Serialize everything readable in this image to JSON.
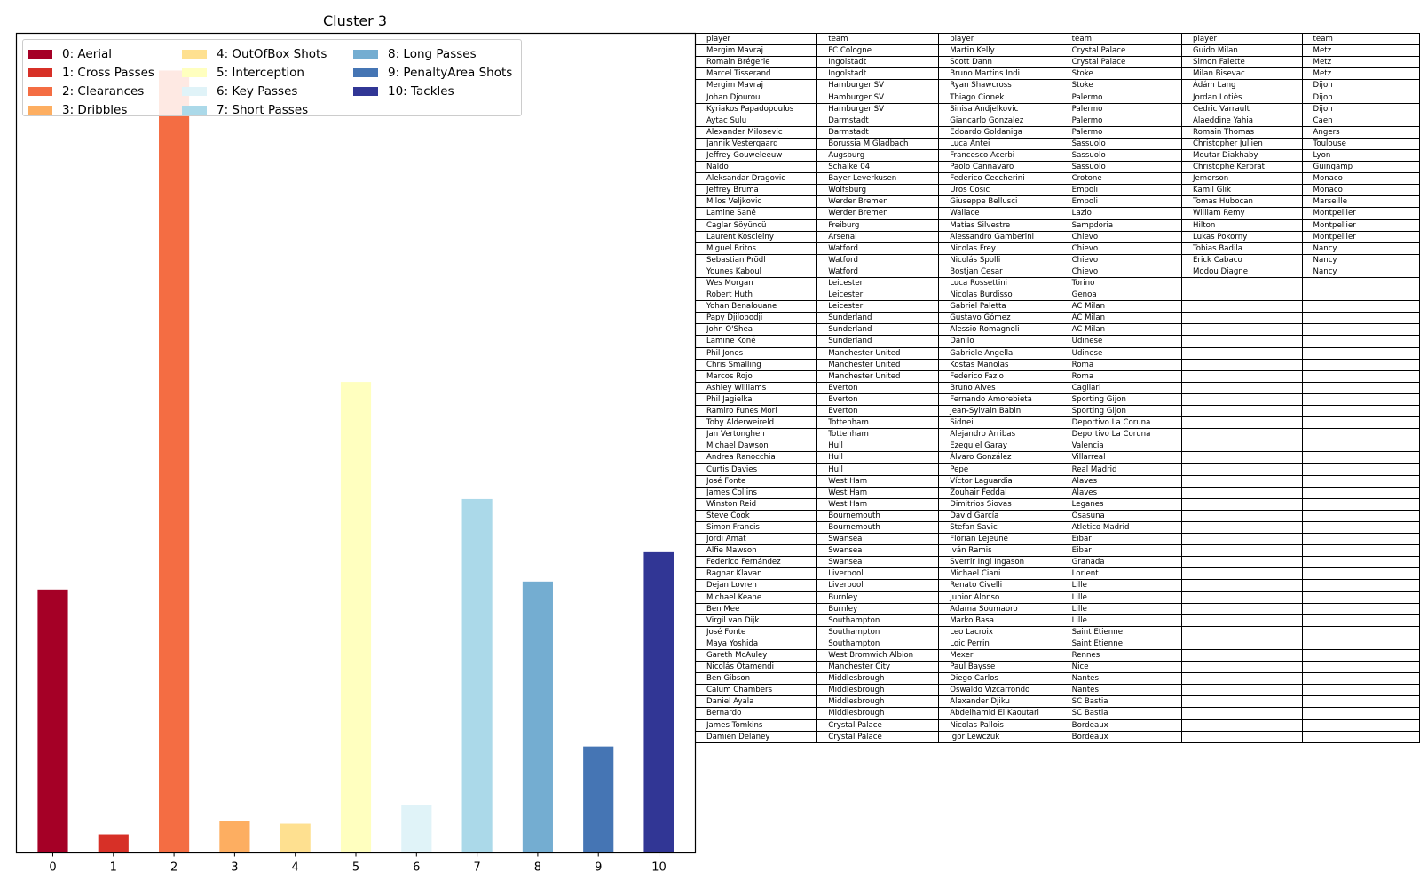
{
  "chart_data": {
    "type": "bar",
    "title": "Cluster 3",
    "categories": [
      "0",
      "1",
      "2",
      "3",
      "4",
      "5",
      "6",
      "7",
      "8",
      "9",
      "10"
    ],
    "values": [
      0.99,
      0.07,
      2.94,
      0.12,
      0.11,
      1.77,
      0.18,
      1.33,
      1.02,
      0.4,
      1.13
    ],
    "ylim": [
      0,
      3.08
    ],
    "colors": [
      "#a50026",
      "#d73027",
      "#f46d43",
      "#fdae61",
      "#fee090",
      "#ffffbf",
      "#e0f3f8",
      "#abd9e9",
      "#74add1",
      "#4575b4",
      "#313695"
    ],
    "legend": {
      "placement": "upper-left",
      "entries": [
        "0: Aerial",
        "1: Cross Passes",
        "2: Clearances",
        "3: Dribbles",
        "4: OutOfBox Shots",
        "5: Interception",
        "6: Key Passes",
        "7: Short Passes",
        "8: Long Passes",
        "9: PenaltyArea Shots",
        "10: Tackles"
      ]
    }
  },
  "table": {
    "headers": [
      "player",
      "team",
      "player",
      "team",
      "player",
      "team"
    ],
    "rows": [
      [
        "Mergim Mavraj",
        "FC Cologne",
        "Martin Kelly",
        "Crystal Palace",
        "Guido Milan",
        "Metz"
      ],
      [
        "Romain Brégerie",
        "Ingolstadt",
        "Scott Dann",
        "Crystal Palace",
        "Simon Falette",
        "Metz"
      ],
      [
        "Marcel Tisserand",
        "Ingolstadt",
        "Bruno Martins Indi",
        "Stoke",
        "Milan Bisevac",
        "Metz"
      ],
      [
        "Mergim Mavraj",
        "Hamburger SV",
        "Ryan Shawcross",
        "Stoke",
        "Ádám Lang",
        "Dijon"
      ],
      [
        "Johan Djourou",
        "Hamburger SV",
        "Thiago Cionek",
        "Palermo",
        "Jordan Lotiès",
        "Dijon"
      ],
      [
        "Kyriakos Papadopoulos",
        "Hamburger SV",
        "Sinisa Andjelkovic",
        "Palermo",
        "Cedric Varrault",
        "Dijon"
      ],
      [
        "Aytac Sulu",
        "Darmstadt",
        "Giancarlo Gonzalez",
        "Palermo",
        "Alaeddine Yahia",
        "Caen"
      ],
      [
        "Alexander Milosevic",
        "Darmstadt",
        "Edoardo Goldaniga",
        "Palermo",
        "Romain Thomas",
        "Angers"
      ],
      [
        "Jannik Vestergaard",
        "Borussia M Gladbach",
        "Luca Antei",
        "Sassuolo",
        "Christopher Jullien",
        "Toulouse"
      ],
      [
        "Jeffrey Gouweleeuw",
        "Augsburg",
        "Francesco Acerbi",
        "Sassuolo",
        "Moutar Diakhaby",
        "Lyon"
      ],
      [
        "Naldo",
        "Schalke 04",
        "Paolo Cannavaro",
        "Sassuolo",
        "Christophe Kerbrat",
        "Guingamp"
      ],
      [
        "Aleksandar Dragovic",
        "Bayer Leverkusen",
        "Federico Ceccherini",
        "Crotone",
        "Jemerson",
        "Monaco"
      ],
      [
        "Jeffrey Bruma",
        "Wolfsburg",
        "Uros Cosic",
        "Empoli",
        "Kamil Glik",
        "Monaco"
      ],
      [
        "Milos Veljkovic",
        "Werder Bremen",
        "Giuseppe Bellusci",
        "Empoli",
        "Tomas Hubocan",
        "Marseille"
      ],
      [
        "Lamine Sané",
        "Werder Bremen",
        "Wallace",
        "Lazio",
        "William Remy",
        "Montpellier"
      ],
      [
        "Caglar Söyüncü",
        "Freiburg",
        "Matías Silvestre",
        "Sampdoria",
        "Hilton",
        "Montpellier"
      ],
      [
        "Laurent Koscielny",
        "Arsenal",
        "Alessandro Gamberini",
        "Chievo",
        "Lukas Pokorny",
        "Montpellier"
      ],
      [
        "Miguel Britos",
        "Watford",
        "Nicolas Frey",
        "Chievo",
        "Tobias Badila",
        "Nancy"
      ],
      [
        "Sebastian Prödl",
        "Watford",
        "Nicolás Spolli",
        "Chievo",
        "Erick Cabaco",
        "Nancy"
      ],
      [
        "Younes Kaboul",
        "Watford",
        "Bostjan Cesar",
        "Chievo",
        "Modou Diagne",
        "Nancy"
      ],
      [
        "Wes Morgan",
        "Leicester",
        "Luca Rossettini",
        "Torino",
        "",
        ""
      ],
      [
        "Robert Huth",
        "Leicester",
        "Nicolas Burdisso",
        "Genoa",
        "",
        ""
      ],
      [
        "Yohan Benalouane",
        "Leicester",
        "Gabriel Paletta",
        "AC Milan",
        "",
        ""
      ],
      [
        "Papy Djilobodji",
        "Sunderland",
        "Gustavo Gómez",
        "AC Milan",
        "",
        ""
      ],
      [
        "John O'Shea",
        "Sunderland",
        "Alessio Romagnoli",
        "AC Milan",
        "",
        ""
      ],
      [
        "Lamine Koné",
        "Sunderland",
        "Danilo",
        "Udinese",
        "",
        ""
      ],
      [
        "Phil Jones",
        "Manchester United",
        "Gabriele Angella",
        "Udinese",
        "",
        ""
      ],
      [
        "Chris Smalling",
        "Manchester United",
        "Kostas Manolas",
        "Roma",
        "",
        ""
      ],
      [
        "Marcos Rojo",
        "Manchester United",
        "Federico Fazio",
        "Roma",
        "",
        ""
      ],
      [
        "Ashley Williams",
        "Everton",
        "Bruno Alves",
        "Cagliari",
        "",
        ""
      ],
      [
        "Phil Jagielka",
        "Everton",
        "Fernando Amorebieta",
        "Sporting Gijon",
        "",
        ""
      ],
      [
        "Ramiro Funes Mori",
        "Everton",
        "Jean-Sylvain Babin",
        "Sporting Gijon",
        "",
        ""
      ],
      [
        "Toby Alderweireld",
        "Tottenham",
        "Sidnei",
        "Deportivo La Coruna",
        "",
        ""
      ],
      [
        "Jan Vertonghen",
        "Tottenham",
        "Alejandro Arribas",
        "Deportivo La Coruna",
        "",
        ""
      ],
      [
        "Michael Dawson",
        "Hull",
        "Ezequiel Garay",
        "Valencia",
        "",
        ""
      ],
      [
        "Andrea Ranocchia",
        "Hull",
        "Álvaro González",
        "Villarreal",
        "",
        ""
      ],
      [
        "Curtis Davies",
        "Hull",
        "Pepe",
        "Real Madrid",
        "",
        ""
      ],
      [
        "José Fonte",
        "West Ham",
        "Víctor Laguardia",
        "Alaves",
        "",
        ""
      ],
      [
        "James Collins",
        "West Ham",
        "Zouhair Feddal",
        "Alaves",
        "",
        ""
      ],
      [
        "Winston Reid",
        "West Ham",
        "Dimitrios Siovas",
        "Leganes",
        "",
        ""
      ],
      [
        "Steve Cook",
        "Bournemouth",
        "David García",
        "Osasuna",
        "",
        ""
      ],
      [
        "Simon Francis",
        "Bournemouth",
        "Stefan Savic",
        "Atletico Madrid",
        "",
        ""
      ],
      [
        "Jordi Amat",
        "Swansea",
        "Florian Lejeune",
        "Eibar",
        "",
        ""
      ],
      [
        "Alfie Mawson",
        "Swansea",
        "Iván Ramis",
        "Eibar",
        "",
        ""
      ],
      [
        "Federico Fernández",
        "Swansea",
        "Sverrir Ingi Ingason",
        "Granada",
        "",
        ""
      ],
      [
        "Ragnar Klavan",
        "Liverpool",
        "Michael Ciani",
        "Lorient",
        "",
        ""
      ],
      [
        "Dejan Lovren",
        "Liverpool",
        "Renato Civelli",
        "Lille",
        "",
        ""
      ],
      [
        "Michael Keane",
        "Burnley",
        "Junior Alonso",
        "Lille",
        "",
        ""
      ],
      [
        "Ben Mee",
        "Burnley",
        "Adama Soumaoro",
        "Lille",
        "",
        ""
      ],
      [
        "Virgil van Dijk",
        "Southampton",
        "Marko Basa",
        "Lille",
        "",
        ""
      ],
      [
        "José Fonte",
        "Southampton",
        "Leo Lacroix",
        "Saint Etienne",
        "",
        ""
      ],
      [
        "Maya Yoshida",
        "Southampton",
        "Loic Perrin",
        "Saint Etienne",
        "",
        ""
      ],
      [
        "Gareth McAuley",
        "West Bromwich Albion",
        "Mexer",
        "Rennes",
        "",
        ""
      ],
      [
        "Nicolás Otamendi",
        "Manchester City",
        "Paul Baysse",
        "Nice",
        "",
        ""
      ],
      [
        "Ben Gibson",
        "Middlesbrough",
        "Diego Carlos",
        "Nantes",
        "",
        ""
      ],
      [
        "Calum Chambers",
        "Middlesbrough",
        "Oswaldo Vizcarrondo",
        "Nantes",
        "",
        ""
      ],
      [
        "Daniel Ayala",
        "Middlesbrough",
        "Alexander Djiku",
        "SC Bastia",
        "",
        ""
      ],
      [
        "Bernardo",
        "Middlesbrough",
        "Abdelhamid El Kaoutari",
        "SC Bastia",
        "",
        ""
      ],
      [
        "James Tomkins",
        "Crystal Palace",
        "Nicolas Pallois",
        "Bordeaux",
        "",
        ""
      ],
      [
        "Damien Delaney",
        "Crystal Palace",
        "Igor Lewczuk",
        "Bordeaux",
        "",
        ""
      ]
    ]
  }
}
